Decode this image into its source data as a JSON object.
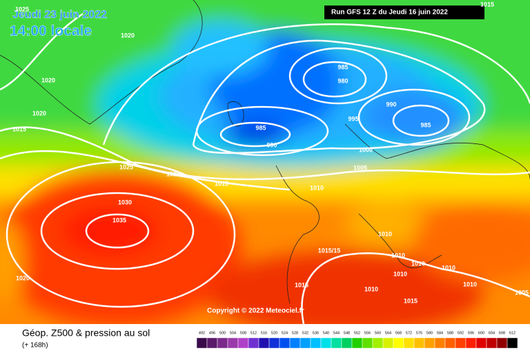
{
  "header": {
    "date": "Jeudi 23 juin 2022",
    "time": "14:00 locale",
    "run": "Run GFS 12 Z du Jeudi 16 juin 2022"
  },
  "footer": {
    "title": "Géop. Z500 & pression au sol",
    "subtitle": "(+ 168h)"
  },
  "copyright": "Copyright © 2022 Meteociel.fr",
  "legend": {
    "values": [
      492,
      496,
      500,
      504,
      508,
      512,
      516,
      520,
      524,
      528,
      532,
      536,
      540,
      544,
      548,
      552,
      556,
      560,
      564,
      568,
      572,
      576,
      580,
      584,
      588,
      592,
      596,
      600,
      604,
      608,
      612
    ],
    "colors": [
      "#3a0a4a",
      "#5a1a6a",
      "#7a2a8a",
      "#9a3aaa",
      "#b040c8",
      "#7030d0",
      "#2010b0",
      "#1030d8",
      "#0050f0",
      "#0080ff",
      "#00a0ff",
      "#00c0ff",
      "#00e0e8",
      "#00e0a0",
      "#00d060",
      "#20d000",
      "#60e000",
      "#a0f000",
      "#d8f000",
      "#ffff00",
      "#ffe000",
      "#ffc000",
      "#ffa000",
      "#ff8000",
      "#ff6000",
      "#ff4000",
      "#ff2000",
      "#e00000",
      "#c00000",
      "#900000",
      "#000000"
    ]
  },
  "isobar_labels": [
    "1025",
    "1015",
    "1020",
    "1020",
    "1020",
    "1015",
    "985",
    "980",
    "990",
    "995",
    "985",
    "985",
    "990",
    "1000",
    "1005",
    "1025",
    "1020",
    "1015",
    "1010",
    "1030",
    "1035",
    "1010",
    "1015/15",
    "1010",
    "1010",
    "1010",
    "1020",
    "1010",
    "1015",
    "1010",
    "1010",
    "1005",
    "1015"
  ]
}
